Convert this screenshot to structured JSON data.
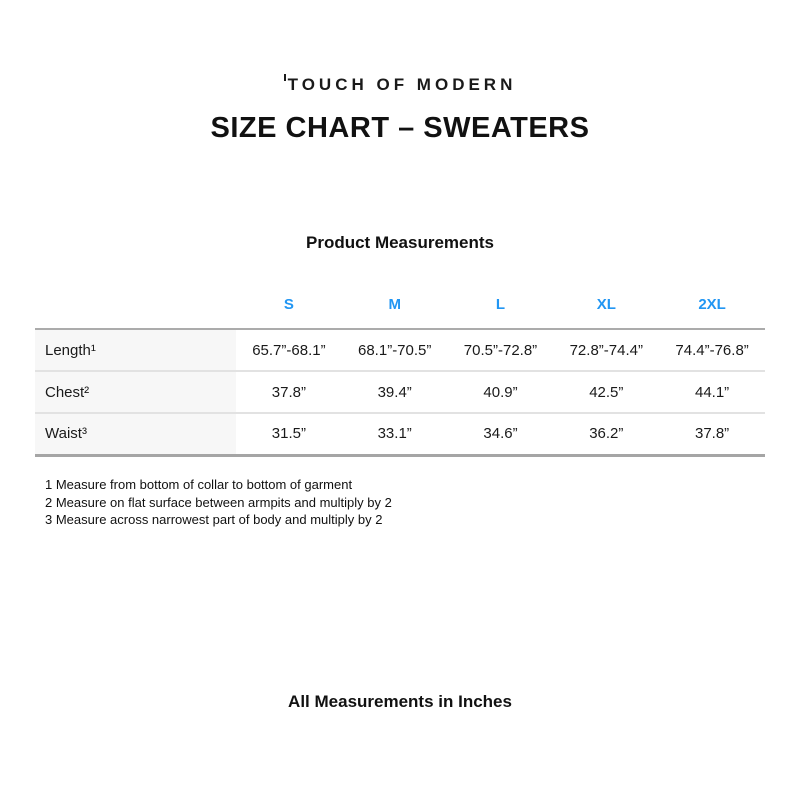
{
  "brand": {
    "logo_text": "TOUCH OF MODERN"
  },
  "page": {
    "title": "SIZE CHART – SWEATERS"
  },
  "section": {
    "heading": "Product Measurements"
  },
  "size_chart": {
    "columns": [
      "S",
      "M",
      "L",
      "XL",
      "2XL"
    ],
    "rows": [
      {
        "label": "Length¹",
        "values": [
          "65.7”-68.1”",
          "68.1”-70.5”",
          "70.5”-72.8”",
          "72.8”-74.4”",
          "74.4”-76.8”"
        ]
      },
      {
        "label": "Chest²",
        "values": [
          "37.8”",
          "39.4”",
          "40.9”",
          "42.5”",
          "44.1”"
        ]
      },
      {
        "label": "Waist³",
        "values": [
          "31.5”",
          "33.1”",
          "34.6”",
          "36.2”",
          "37.8”"
        ]
      }
    ]
  },
  "footnotes": [
    "1 Measure from bottom of collar to bottom of garment",
    "2 Measure on flat surface between armpits and multiply by 2",
    "3 Measure across narrowest part of body and multiply by 2"
  ],
  "footer": {
    "note": "All Measurements in Inches"
  },
  "colors": {
    "accent_blue": "#2196f3",
    "label_cell_bg": "#f7f7f7",
    "heavy_border": "#ababab",
    "light_border": "#e2e2e2"
  }
}
